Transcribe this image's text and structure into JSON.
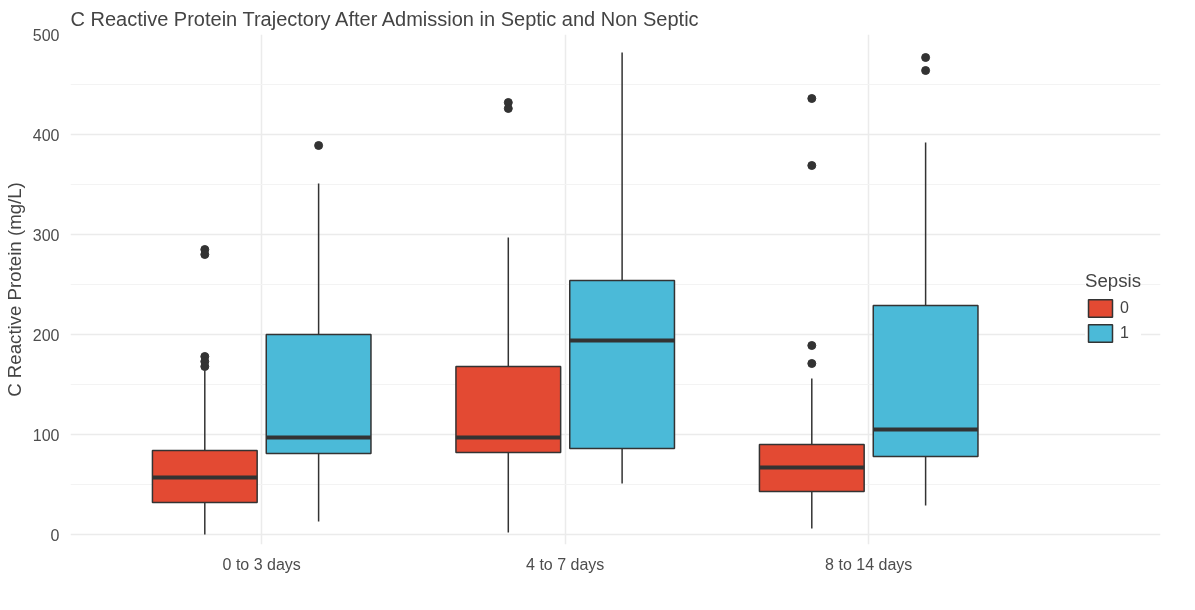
{
  "chart_data": {
    "type": "box",
    "title": "C Reactive Protein Trajectory After Admission in Septic and Non Septic",
    "ylabel": "C Reactive Protein (mg/L)",
    "legend_title": "Sepsis",
    "categories": [
      "0 to 3 days",
      "4 to 7 days",
      "8 to 14 days"
    ],
    "ylim": [
      -10,
      500
    ],
    "yticks": [
      0,
      100,
      200,
      300,
      400,
      500
    ],
    "grid": true,
    "legend": "right",
    "series": [
      {
        "name": "0",
        "color": "#e34a33",
        "boxes": [
          {
            "low": 0,
            "q1": 32,
            "median": 57,
            "q3": 84,
            "high": 164,
            "outliers": [
              285,
              280,
              178,
              173,
              168
            ]
          },
          {
            "low": 2,
            "q1": 82,
            "median": 97,
            "q3": 168,
            "high": 297,
            "outliers": [
              432,
              426
            ]
          },
          {
            "low": 6,
            "q1": 43,
            "median": 67,
            "q3": 90,
            "high": 156,
            "outliers": [
              436,
              369,
              189,
              171
            ]
          }
        ]
      },
      {
        "name": "1",
        "color": "#4bbad8",
        "boxes": [
          {
            "low": 13,
            "q1": 81,
            "median": 97,
            "q3": 200,
            "high": 351,
            "outliers": [
              389
            ]
          },
          {
            "low": 51,
            "q1": 86,
            "median": 194,
            "q3": 254,
            "high": 482
          },
          {
            "low": 29,
            "q1": 78,
            "median": 105,
            "q3": 229,
            "high": 392,
            "outliers": [
              477,
              464
            ]
          }
        ]
      }
    ]
  }
}
